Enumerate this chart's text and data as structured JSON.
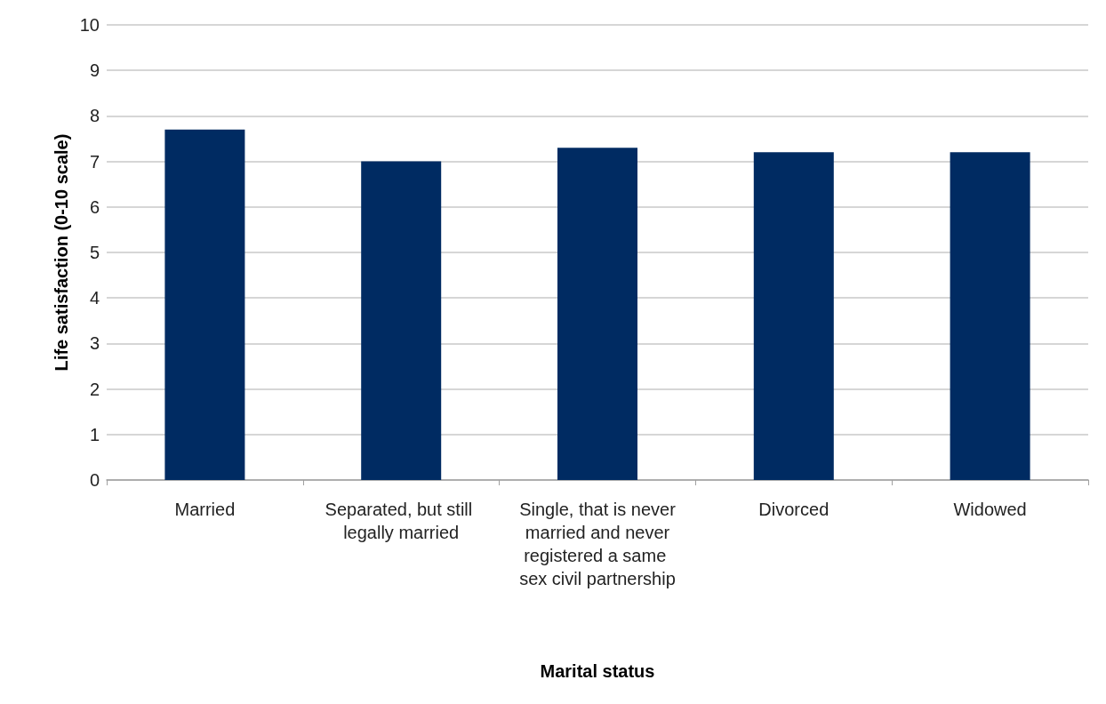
{
  "chart_data": {
    "type": "bar",
    "xlabel": "Marital status",
    "ylabel": "Life satisfaction (0-10 scale)",
    "categories": [
      "Married",
      "Separated, but still legally married",
      "Single, that is never married and never registered a same sex civil partnership",
      "Divorced",
      "Widowed"
    ],
    "values": [
      7.7,
      7.0,
      7.3,
      7.2,
      7.2
    ],
    "color": "#002b62",
    "ylim": [
      0,
      10
    ],
    "yticks": [
      0,
      1,
      2,
      3,
      4,
      5,
      6,
      7,
      8,
      9,
      10
    ],
    "grid": "y"
  }
}
